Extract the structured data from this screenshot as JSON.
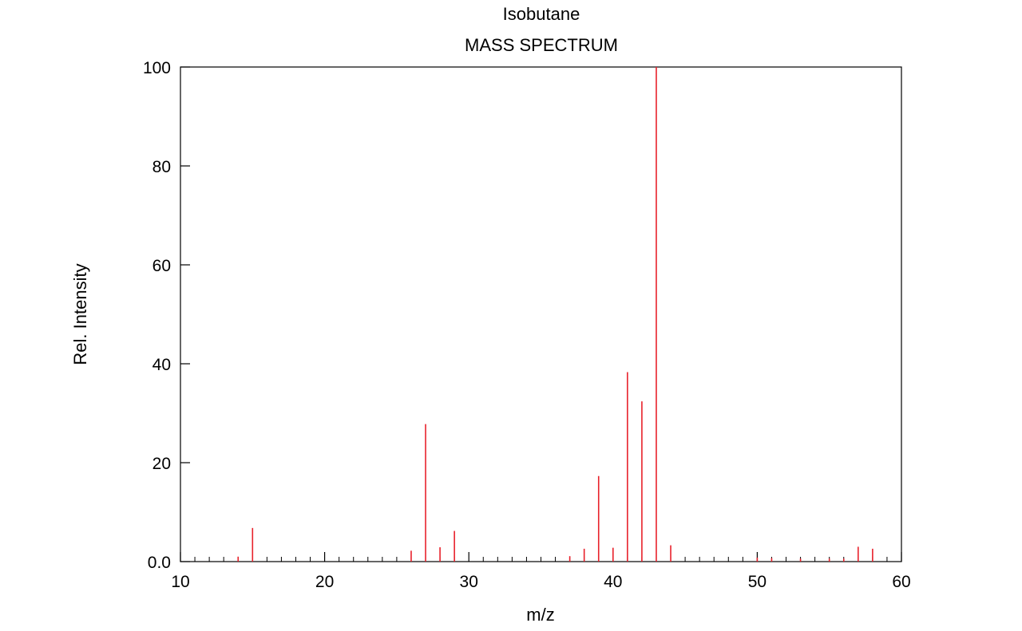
{
  "chart_data": {
    "type": "bar",
    "title": "Isobutane",
    "subtitle": "MASS SPECTRUM",
    "xlabel": "m/z",
    "ylabel": "Rel. Intensity",
    "xlim": [
      10,
      60
    ],
    "ylim": [
      0,
      100
    ],
    "x_ticks": [
      "10",
      "20",
      "30",
      "40",
      "50",
      "60"
    ],
    "y_ticks": [
      "0.0",
      "20",
      "40",
      "60",
      "80",
      "100"
    ],
    "grid": false,
    "bar_color": "#e8212b",
    "peaks": [
      {
        "mz": 14,
        "intensity": 1.0
      },
      {
        "mz": 15,
        "intensity": 6.8
      },
      {
        "mz": 26,
        "intensity": 2.2
      },
      {
        "mz": 27,
        "intensity": 27.8
      },
      {
        "mz": 28,
        "intensity": 2.9
      },
      {
        "mz": 29,
        "intensity": 6.2
      },
      {
        "mz": 37,
        "intensity": 1.1
      },
      {
        "mz": 38,
        "intensity": 2.6
      },
      {
        "mz": 39,
        "intensity": 17.3
      },
      {
        "mz": 40,
        "intensity": 2.8
      },
      {
        "mz": 41,
        "intensity": 38.3
      },
      {
        "mz": 42,
        "intensity": 32.4
      },
      {
        "mz": 43,
        "intensity": 100.0
      },
      {
        "mz": 44,
        "intensity": 3.3
      },
      {
        "mz": 50,
        "intensity": 0.8
      },
      {
        "mz": 51,
        "intensity": 0.7
      },
      {
        "mz": 53,
        "intensity": 0.6
      },
      {
        "mz": 55,
        "intensity": 0.6
      },
      {
        "mz": 56,
        "intensity": 0.6
      },
      {
        "mz": 57,
        "intensity": 3.0
      },
      {
        "mz": 58,
        "intensity": 2.6
      }
    ]
  }
}
